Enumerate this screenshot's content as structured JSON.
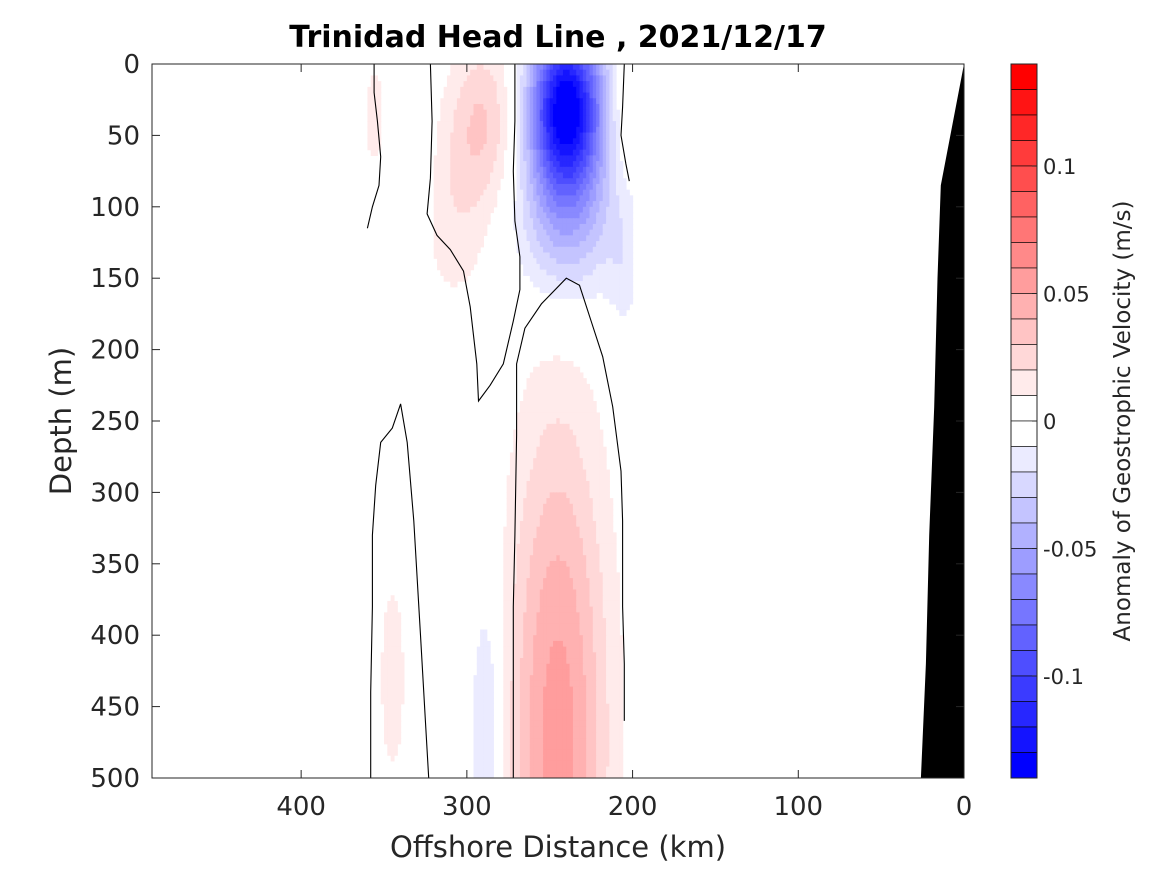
{
  "chart_data": {
    "type": "heatmap",
    "title": "Trinidad Head Line , 2021/12/17",
    "xlabel": "Offshore Distance (km)",
    "ylabel": "Depth (m)",
    "xlim": [
      490,
      0
    ],
    "ylim": [
      0,
      500
    ],
    "x_ticks": [
      400,
      300,
      200,
      100,
      0
    ],
    "y_ticks": [
      0,
      50,
      100,
      150,
      200,
      250,
      300,
      350,
      400,
      450,
      500
    ],
    "colorbar": {
      "label": "Anomaly of Geostrophic Velocity (m/s)",
      "range": [
        -0.14,
        0.14
      ],
      "step": 0.01,
      "ticks": [
        0.1,
        0.05,
        0,
        -0.05,
        -0.1
      ],
      "tick_labels": [
        "0.1",
        "0.05",
        "0",
        "-0.05",
        "-0.1"
      ],
      "low_color": "#0000ff",
      "high_color": "#ff0000"
    },
    "features": [
      {
        "name": "strong southward jet",
        "x_center": 240,
        "depth_center": 30,
        "x_halfwidth": 22,
        "depth_scale": 60,
        "value": -0.14
      },
      {
        "name": "deep jet extension",
        "x_center": 240,
        "depth_center": 110,
        "x_halfwidth": 30,
        "depth_scale": 60,
        "value": -0.04
      },
      {
        "name": "upper positive core",
        "x_center": 290,
        "depth_center": 40,
        "x_halfwidth": 22,
        "depth_scale": 60,
        "value": 0.03
      },
      {
        "name": "upper positive flank",
        "x_center": 310,
        "depth_center": 110,
        "x_halfwidth": 25,
        "depth_scale": 70,
        "value": 0.015
      },
      {
        "name": "west surface positive",
        "x_center": 355,
        "depth_center": 40,
        "x_halfwidth": 8,
        "depth_scale": 50,
        "value": 0.02
      },
      {
        "name": "east surface positive",
        "x_center": 205,
        "depth_center": 30,
        "x_halfwidth": 8,
        "depth_scale": 60,
        "value": 0.015
      },
      {
        "name": "west negative",
        "x_center": 340,
        "depth_center": 80,
        "x_halfwidth": 18,
        "depth_scale": 90,
        "value": -0.012
      },
      {
        "name": "east negative flank",
        "x_center": 205,
        "depth_center": 140,
        "x_halfwidth": 10,
        "depth_scale": 60,
        "value": -0.012
      },
      {
        "name": "deep positive jet",
        "x_center": 245,
        "depth_center": 470,
        "x_halfwidth": 30,
        "depth_scale": 220,
        "value": 0.055
      },
      {
        "name": "deep west positive",
        "x_center": 345,
        "depth_center": 430,
        "x_halfwidth": 10,
        "depth_scale": 90,
        "value": 0.015
      },
      {
        "name": "deep negative",
        "x_center": 288,
        "depth_center": 470,
        "x_halfwidth": 10,
        "depth_scale": 110,
        "value": -0.025
      }
    ],
    "data_extent": {
      "x": [
        360,
        200
      ],
      "depth": [
        0,
        500
      ]
    },
    "zero_contours": [
      {
        "name": "contour-west-upper",
        "points": [
          [
            360,
            115
          ],
          [
            357,
            100
          ],
          [
            353,
            85
          ],
          [
            352,
            65
          ],
          [
            354,
            40
          ],
          [
            356,
            20
          ],
          [
            356,
            0
          ]
        ]
      },
      {
        "name": "contour-west-deep",
        "points": [
          [
            358,
            500
          ],
          [
            358,
            440
          ],
          [
            357,
            380
          ],
          [
            357,
            330
          ],
          [
            355,
            295
          ],
          [
            352,
            265
          ],
          [
            345,
            255
          ],
          [
            340,
            238
          ],
          [
            336,
            265
          ],
          [
            332,
            320
          ],
          [
            328,
            400
          ],
          [
            325,
            460
          ],
          [
            323,
            500
          ]
        ]
      },
      {
        "name": "contour-central",
        "points": [
          [
            322,
            0
          ],
          [
            321,
            40
          ],
          [
            322,
            80
          ],
          [
            324,
            105
          ],
          [
            318,
            120
          ],
          [
            310,
            130
          ],
          [
            302,
            145
          ],
          [
            298,
            170
          ],
          [
            294,
            210
          ],
          [
            293,
            236
          ],
          [
            286,
            225
          ],
          [
            278,
            210
          ],
          [
            272,
            180
          ],
          [
            268,
            158
          ],
          [
            268,
            135
          ],
          [
            271,
            110
          ],
          [
            272,
            75
          ],
          [
            271,
            40
          ],
          [
            271,
            0
          ]
        ]
      },
      {
        "name": "contour-east-deep",
        "points": [
          [
            272,
            500
          ],
          [
            272,
            440
          ],
          [
            272,
            380
          ],
          [
            271,
            330
          ],
          [
            270,
            260
          ],
          [
            270,
            210
          ],
          [
            265,
            185
          ],
          [
            255,
            168
          ],
          [
            240,
            150
          ],
          [
            232,
            155
          ],
          [
            225,
            180
          ],
          [
            218,
            205
          ],
          [
            212,
            240
          ],
          [
            207,
            285
          ],
          [
            206,
            320
          ],
          [
            206,
            380
          ],
          [
            205,
            420
          ],
          [
            205,
            460
          ]
        ]
      },
      {
        "name": "contour-east-upper",
        "points": [
          [
            205,
            0
          ],
          [
            206,
            30
          ],
          [
            207,
            50
          ],
          [
            204,
            70
          ],
          [
            202,
            82
          ]
        ]
      }
    ],
    "bathymetry": {
      "color": "#000000",
      "points": [
        [
          0,
          0
        ],
        [
          14,
          85
        ],
        [
          16,
          150
        ],
        [
          18,
          240
        ],
        [
          21,
          330
        ],
        [
          23,
          420
        ],
        [
          26,
          500
        ],
        [
          0,
          500
        ]
      ]
    }
  }
}
